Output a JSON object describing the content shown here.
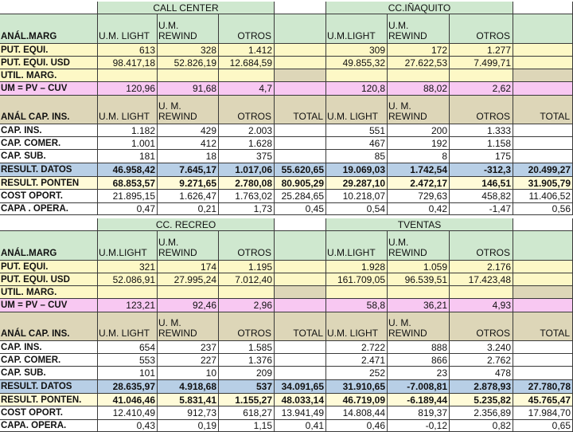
{
  "colors": {
    "header_green": "#cfe8cf",
    "input_yellow": "#fdf8c6",
    "margin_pink": "#f8c8f2",
    "capacity_tan": "#ddd6b8",
    "result_blue": "#b8cfe6",
    "ponten_yellow": "#fffbd8"
  },
  "blocks": [
    {
      "left_title": "CALL CENTER",
      "right_title": "CC.IÑAQUITO",
      "margin_header": {
        "label": "ANÁL.MARG",
        "left": [
          "U.M. LIGHT",
          "U.M. REWIND",
          "OTROS",
          ""
        ],
        "right": [
          "U.M.LIGHT",
          "U.M. REWIND",
          "OTROS",
          ""
        ]
      },
      "margin_rows": [
        {
          "label": "PUT. EQUI.",
          "left": [
            "613",
            "328",
            "1.412",
            ""
          ],
          "right": [
            "309",
            "172",
            "1.277",
            ""
          ]
        },
        {
          "label": "PUT. EQUI. USD",
          "left": [
            "98.417,18",
            "52.826,19",
            "12.684,59",
            ""
          ],
          "right": [
            "49.855,32",
            "27.622,53",
            "7.499,71",
            ""
          ]
        },
        {
          "label": "UTIL. MARG.",
          "left": [
            "",
            "",
            "",
            ""
          ],
          "right": [
            "",
            "",
            "",
            ""
          ]
        },
        {
          "label": "UM = PV – CUV",
          "left": [
            "120,96",
            "91,68",
            "4,7",
            ""
          ],
          "right": [
            "120,8",
            "88,02",
            "2,62",
            ""
          ]
        }
      ],
      "cap_header": {
        "label": "ANÁL CAP. INS.",
        "left": [
          "U.M. LIGHT",
          "U. M. REWIND",
          "OTROS",
          "TOTAL"
        ],
        "right": [
          "U.M. LIGHT",
          "U. M. REWIND",
          "OTROS",
          "TOTAL"
        ]
      },
      "cap_rows": [
        {
          "label": "CAP. INS.",
          "left": [
            "1.182",
            "429",
            "2.003",
            ""
          ],
          "right": [
            "551",
            "200",
            "1.333",
            ""
          ]
        },
        {
          "label": "CAP. COMER.",
          "left": [
            "1.001",
            "412",
            "1.628",
            ""
          ],
          "right": [
            "467",
            "192",
            "1.158",
            ""
          ]
        },
        {
          "label": "CAP. SUB.",
          "left": [
            "181",
            "18",
            "375",
            ""
          ],
          "right": [
            "85",
            "8",
            "175",
            ""
          ]
        },
        {
          "label": "RESULT. DATOS",
          "left": [
            "46.958,42",
            "7.645,17",
            "1.017,06",
            "55.620,65"
          ],
          "right": [
            "19.069,03",
            "1.742,54",
            "-312,3",
            "20.499,27"
          ]
        },
        {
          "label": "RESULT. PONTEN",
          "left": [
            "68.853,57",
            "9.271,65",
            "2.780,08",
            "80.905,29"
          ],
          "right": [
            "29.287,10",
            "2.472,17",
            "146,51",
            "31.905,79"
          ]
        },
        {
          "label": "COST OPORT.",
          "left": [
            "21.895,15",
            "1.626,47",
            "1.763,02",
            "25.284,65"
          ],
          "right": [
            "10.218,07",
            "729,63",
            "458,82",
            "11.406,52"
          ]
        },
        {
          "label": "CAPA . OPERA.",
          "left": [
            "0,47",
            "0,21",
            "1,73",
            "0,45"
          ],
          "right": [
            "0,54",
            "0,42",
            "-1,47",
            "0,56"
          ]
        }
      ]
    },
    {
      "left_title": "CC. RECREO",
      "right_title": "TVENTAS",
      "margin_header": {
        "label": "ANÁL.MARG",
        "left": [
          "U.M.LIGHT",
          "U.M. REWIND",
          "OTROS",
          ""
        ],
        "right": [
          "U.M.LIGHT",
          "U.M. REWIND",
          "OTROS",
          ""
        ]
      },
      "margin_rows": [
        {
          "label": "PUT. EQUI.",
          "left": [
            "321",
            "174",
            "1.195",
            ""
          ],
          "right": [
            "1.928",
            "1.059",
            "2.176",
            ""
          ]
        },
        {
          "label": "PUT. EQUI. USD",
          "left": [
            "52.086,91",
            "27.995,24",
            "7.012,40",
            ""
          ],
          "right": [
            "161.709,05",
            "96.539,51",
            "17.423,48",
            ""
          ]
        },
        {
          "label": "UTIL. MARG.",
          "left": [
            "",
            "",
            "",
            ""
          ],
          "right": [
            "",
            "",
            "",
            ""
          ]
        },
        {
          "label": "UM = PV – CUV",
          "left": [
            "123,21",
            "92,46",
            "2,96",
            ""
          ],
          "right": [
            "58,8",
            "36,21",
            "4,93",
            ""
          ]
        }
      ],
      "cap_header": {
        "label": "ANÁL CAP. INS.",
        "left": [
          "U.M. LIGHT",
          "U. M. REWIND",
          "OTROS",
          "TOTAL"
        ],
        "right": [
          "U.M. LIGHT",
          "U. M. REWIND",
          "OTROS",
          "TOTAL"
        ]
      },
      "cap_rows": [
        {
          "label": "CAP. INS.",
          "left": [
            "654",
            "237",
            "1.585",
            ""
          ],
          "right": [
            "2.722",
            "888",
            "3.240",
            ""
          ]
        },
        {
          "label": "CAP. COMER.",
          "left": [
            "553",
            "227",
            "1.376",
            ""
          ],
          "right": [
            "2.471",
            "866",
            "2.762",
            ""
          ]
        },
        {
          "label": "CAP. SUB.",
          "left": [
            "101",
            "10",
            "209",
            ""
          ],
          "right": [
            "252",
            "23",
            "478",
            ""
          ]
        },
        {
          "label": "RESULT. DATOS",
          "left": [
            "28.635,97",
            "4.918,68",
            "537",
            "34.091,65"
          ],
          "right": [
            "31.910,65",
            "-7.008,81",
            "2.878,93",
            "27.780,78"
          ]
        },
        {
          "label": "RESULT. PONTEN.",
          "left": [
            "41.046,46",
            "5.831,41",
            "1.155,27",
            "48.033,14"
          ],
          "right": [
            "46.719,09",
            "-6.189,44",
            "5.235,82",
            "45.765,47"
          ]
        },
        {
          "label": "COST OPORT.",
          "left": [
            "12.410,49",
            "912,73",
            "618,27",
            "13.941,49"
          ],
          "right": [
            "14.808,44",
            "819,37",
            "2.356,89",
            "17.984,70"
          ]
        },
        {
          "label": "CAPA. OPERA.",
          "left": [
            "0,43",
            "0,19",
            "1,15",
            "0,41"
          ],
          "right": [
            "0,46",
            "-0,12",
            "0,82",
            "0,65"
          ]
        }
      ]
    }
  ]
}
